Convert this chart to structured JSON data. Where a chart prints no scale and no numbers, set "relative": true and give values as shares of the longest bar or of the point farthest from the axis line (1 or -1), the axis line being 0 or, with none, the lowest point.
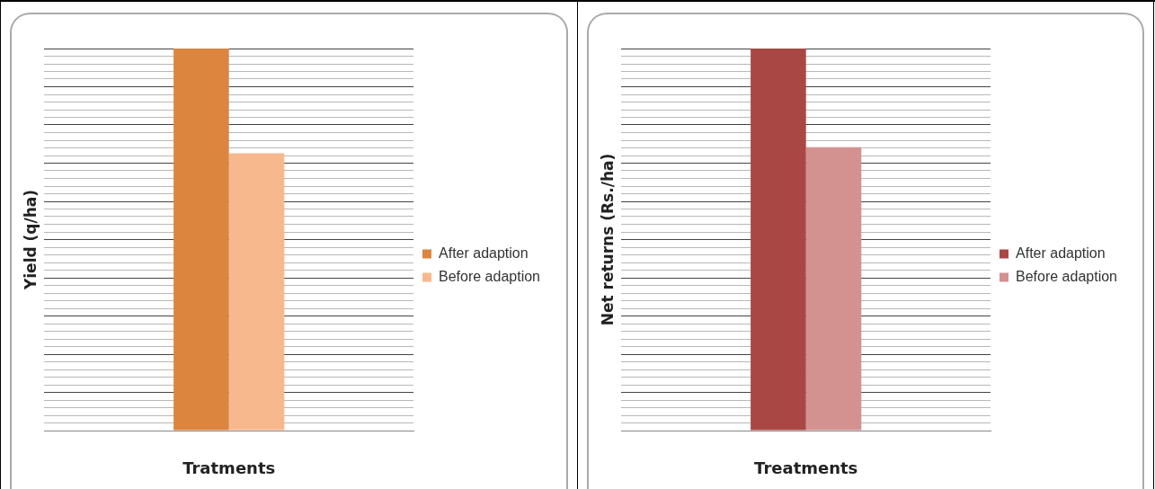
{
  "chart_data": [
    {
      "type": "bar",
      "relative": true,
      "xlabel": "Tratments",
      "ylabel": "Yield (q/ha)",
      "categories": [
        null
      ],
      "grid": "y",
      "legend": "right",
      "series": [
        {
          "name": "After adaption",
          "color": "#dc853e",
          "values": [
            1
          ]
        },
        {
          "name": "Before adaption",
          "color": "#f8b88e",
          "values": [
            0.726
          ]
        }
      ]
    },
    {
      "type": "bar",
      "relative": true,
      "xlabel": "Treatments",
      "ylabel": "Net returns (Rs./ha)",
      "categories": [
        null
      ],
      "grid": "y",
      "legend": "right",
      "series": [
        {
          "name": "After adaption",
          "color": "#a94744",
          "values": [
            1
          ]
        },
        {
          "name": "Before adaption",
          "color": "#d39190",
          "values": [
            0.742
          ]
        }
      ]
    }
  ]
}
